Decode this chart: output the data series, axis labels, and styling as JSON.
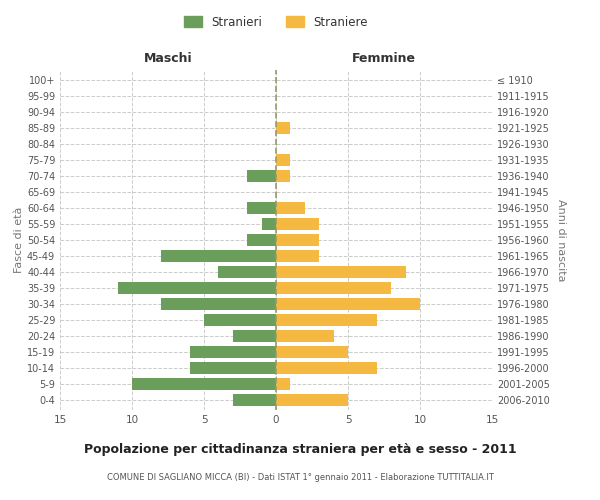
{
  "age_groups": [
    "0-4",
    "5-9",
    "10-14",
    "15-19",
    "20-24",
    "25-29",
    "30-34",
    "35-39",
    "40-44",
    "45-49",
    "50-54",
    "55-59",
    "60-64",
    "65-69",
    "70-74",
    "75-79",
    "80-84",
    "85-89",
    "90-94",
    "95-99",
    "100+"
  ],
  "birth_years": [
    "2006-2010",
    "2001-2005",
    "1996-2000",
    "1991-1995",
    "1986-1990",
    "1981-1985",
    "1976-1980",
    "1971-1975",
    "1966-1970",
    "1961-1965",
    "1956-1960",
    "1951-1955",
    "1946-1950",
    "1941-1945",
    "1936-1940",
    "1931-1935",
    "1926-1930",
    "1921-1925",
    "1916-1920",
    "1911-1915",
    "≤ 1910"
  ],
  "maschi": [
    3,
    10,
    6,
    6,
    3,
    5,
    8,
    11,
    4,
    8,
    2,
    1,
    2,
    0,
    2,
    0,
    0,
    0,
    0,
    0,
    0
  ],
  "femmine": [
    5,
    1,
    7,
    5,
    4,
    7,
    10,
    8,
    9,
    3,
    3,
    3,
    2,
    0,
    1,
    1,
    0,
    1,
    0,
    0,
    0
  ],
  "maschi_color": "#6a9e5a",
  "femmine_color": "#f5b942",
  "title": "Popolazione per cittadinanza straniera per età e sesso - 2011",
  "subtitle": "COMUNE DI SAGLIANO MICCA (BI) - Dati ISTAT 1° gennaio 2011 - Elaborazione TUTTITALIA.IT",
  "xlabel_left": "Maschi",
  "xlabel_right": "Femmine",
  "ylabel_left": "Fasce di età",
  "ylabel_right": "Anni di nascita",
  "legend_stranieri": "Stranieri",
  "legend_straniere": "Straniere",
  "xlim": 15,
  "background_color": "#ffffff",
  "grid_color": "#cccccc"
}
